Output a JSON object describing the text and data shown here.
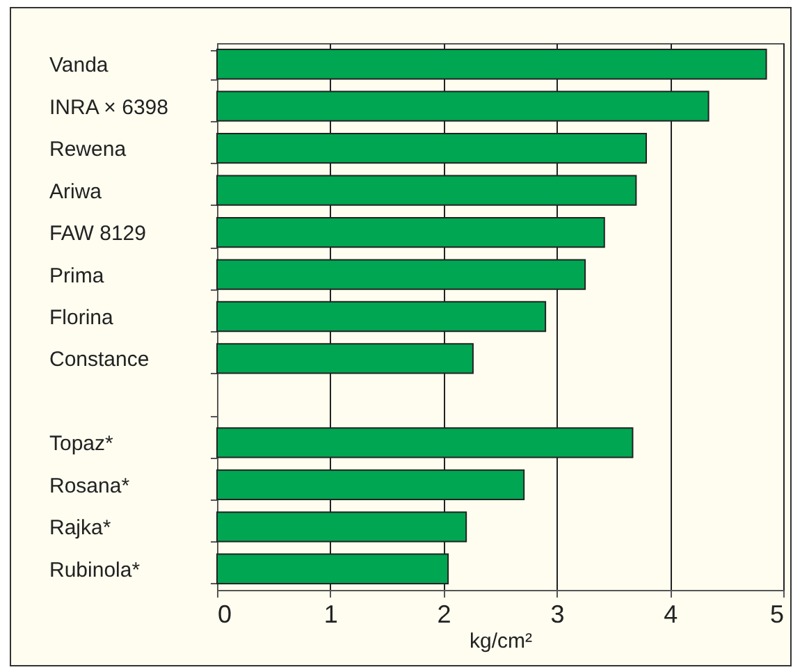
{
  "chart_data": {
    "type": "bar",
    "orientation": "horizontal",
    "xlabel": "kg/cm²",
    "categories": [
      "Vanda",
      "INRA × 6398",
      "Rewena",
      "Ariwa",
      "FAW 8129",
      "Prima",
      "Florina",
      "Constance",
      null,
      "Topaz*",
      "Rosana*",
      "Rajka*",
      "Rubinola*"
    ],
    "values": [
      4.85,
      4.34,
      3.79,
      3.7,
      3.42,
      3.25,
      2.9,
      2.26,
      null,
      3.67,
      2.71,
      2.2,
      2.04
    ],
    "color": "#00a651",
    "xlim": [
      0,
      5
    ],
    "xticks": [
      0,
      1,
      2,
      3,
      4,
      5
    ],
    "grid": "x"
  }
}
